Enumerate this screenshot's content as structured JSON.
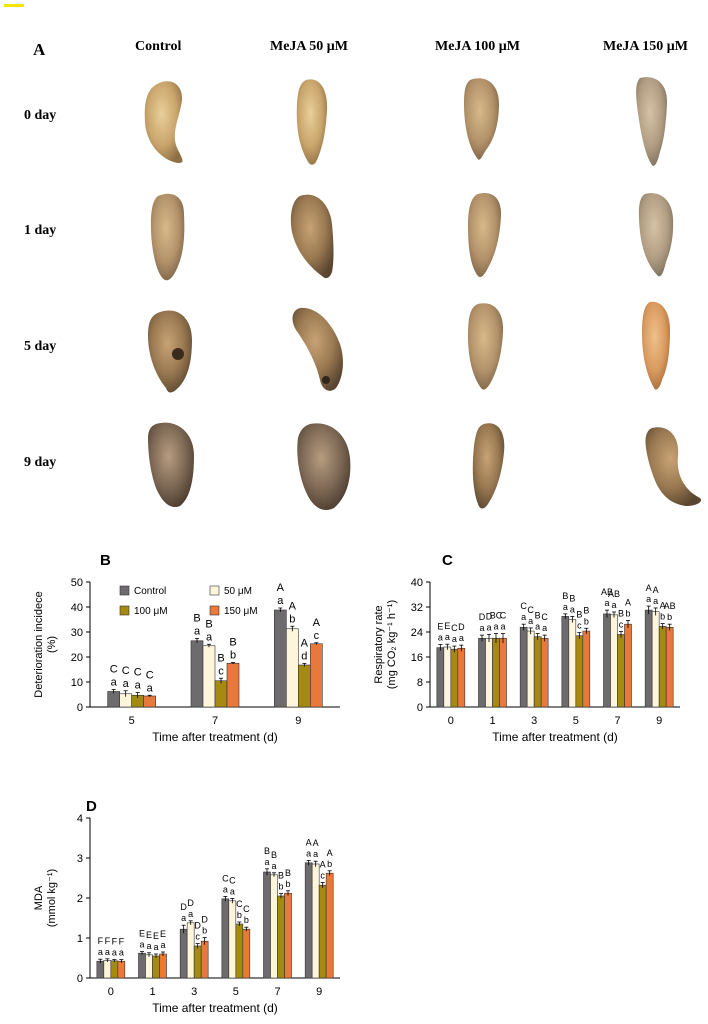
{
  "panel_a": {
    "label": "A",
    "columns": [
      "Control",
      "MeJA 50 μM",
      "MeJA 100 μM",
      "MeJA 150 μM"
    ],
    "rows": [
      "0 day",
      "1 day",
      "5 day",
      "9 day"
    ]
  },
  "colors": {
    "control": "#6e6b6e",
    "m50": "#fdf6dc",
    "m100": "#a58a12",
    "m150": "#e8793a"
  },
  "chart_data": [
    {
      "panel": "B",
      "type": "bar",
      "xlabel": "Time after treatment (d)",
      "ylabel_lines": [
        "Deterioration incidece",
        "(%)"
      ],
      "ylim": [
        0,
        50
      ],
      "yticks": [
        "0",
        "10",
        "20",
        "30",
        "40",
        "50"
      ],
      "categories": [
        "5",
        "7",
        "9"
      ],
      "legend": [
        "Control",
        "50 μM",
        "100 μM",
        "150 μM"
      ],
      "series": [
        {
          "name": "Control",
          "values": [
            6.2,
            26.5,
            38.8
          ],
          "err": [
            0.8,
            0.9,
            0.8
          ]
        },
        {
          "name": "50 μM",
          "values": [
            5.3,
            24.5,
            31.3
          ],
          "err": [
            1.2,
            0.6,
            1.0
          ]
        },
        {
          "name": "100 μM",
          "values": [
            4.7,
            10.5,
            16.8
          ],
          "err": [
            1.1,
            1.0,
            0.6
          ]
        },
        {
          "name": "150 μM",
          "values": [
            4.4,
            17.5,
            25.3
          ],
          "err": [
            0.3,
            0.3,
            0.4
          ]
        }
      ],
      "letters": [
        [
          [
            "C",
            "a"
          ],
          [
            "B",
            "a"
          ],
          [
            "A",
            "a"
          ]
        ],
        [
          [
            "C",
            "a"
          ],
          [
            "B",
            "a"
          ],
          [
            "A",
            "b"
          ]
        ],
        [
          [
            "C",
            "a"
          ],
          [
            "B",
            "c"
          ],
          [
            "A",
            "d"
          ]
        ],
        [
          [
            "C",
            "a"
          ],
          [
            "B",
            "b"
          ],
          [
            "A",
            "c"
          ]
        ]
      ]
    },
    {
      "panel": "C",
      "type": "bar",
      "xlabel": "Time after treatment (d)",
      "ylabel_lines": [
        "Respiratory rate",
        "(mg CO₂ kg⁻¹ h⁻¹)"
      ],
      "ylim": [
        0,
        40
      ],
      "yticks": [
        "0",
        "8",
        "16",
        "24",
        "32",
        "40"
      ],
      "categories": [
        "0",
        "1",
        "3",
        "5",
        "7",
        "9"
      ],
      "series": [
        {
          "name": "Control",
          "values": [
            19.0,
            22.0,
            25.5,
            29.0,
            29.8,
            31.0
          ],
          "err": [
            1.0,
            1.0,
            1.0,
            0.8,
            1.2,
            1.3
          ]
        },
        {
          "name": "50 μM",
          "values": [
            19.2,
            22.0,
            24.3,
            28.0,
            29.5,
            30.5
          ],
          "err": [
            0.9,
            1.2,
            1.0,
            1.0,
            0.9,
            1.2
          ]
        },
        {
          "name": "100 μM",
          "values": [
            18.5,
            22.0,
            22.5,
            22.8,
            23.2,
            25.8
          ],
          "err": [
            1.0,
            1.5,
            1.0,
            1.0,
            1.0,
            0.9
          ]
        },
        {
          "name": "150 μM",
          "values": [
            18.8,
            22.0,
            22.0,
            24.3,
            26.5,
            25.5
          ],
          "err": [
            1.0,
            1.5,
            1.0,
            0.9,
            1.2,
            1.0
          ]
        }
      ],
      "letters": [
        [
          [
            "E",
            "a"
          ],
          [
            "D",
            "a"
          ],
          [
            "C",
            "a"
          ],
          [
            "B",
            "a"
          ],
          [
            "AB",
            "a"
          ],
          [
            "A",
            "a"
          ]
        ],
        [
          [
            "E",
            "a"
          ],
          [
            "D",
            "a"
          ],
          [
            "C",
            "a"
          ],
          [
            "B",
            "a"
          ],
          [
            "AB",
            "a"
          ],
          [
            "A",
            "a"
          ]
        ],
        [
          [
            "C",
            "a"
          ],
          [
            "BC",
            "a"
          ],
          [
            "B",
            "a"
          ],
          [
            "B",
            "c"
          ],
          [
            "B",
            "c"
          ],
          [
            "A",
            "b"
          ]
        ],
        [
          [
            "D",
            "a"
          ],
          [
            "C",
            "a"
          ],
          [
            "C",
            "a"
          ],
          [
            "B",
            "b"
          ],
          [
            "A",
            "b"
          ],
          [
            "AB",
            "b"
          ]
        ]
      ]
    },
    {
      "panel": "D",
      "type": "bar",
      "xlabel": "Time after treatment (d)",
      "ylabel_lines": [
        "MDA",
        "(mmol kg⁻¹)"
      ],
      "ylim": [
        0,
        4
      ],
      "yticks": [
        "0",
        "1",
        "2",
        "3",
        "4"
      ],
      "categories": [
        "0",
        "1",
        "3",
        "5",
        "7",
        "9"
      ],
      "series": [
        {
          "name": "Control",
          "values": [
            0.42,
            0.62,
            1.22,
            1.98,
            2.65,
            2.88
          ],
          "err": [
            0.05,
            0.04,
            0.1,
            0.06,
            0.08,
            0.06
          ]
        },
        {
          "name": "50 μM",
          "values": [
            0.44,
            0.58,
            1.38,
            1.93,
            2.58,
            2.85
          ],
          "err": [
            0.04,
            0.05,
            0.05,
            0.06,
            0.05,
            0.07
          ]
        },
        {
          "name": "100 μM",
          "values": [
            0.43,
            0.55,
            0.8,
            1.35,
            2.05,
            2.32
          ],
          "err": [
            0.03,
            0.05,
            0.06,
            0.05,
            0.06,
            0.07
          ]
        },
        {
          "name": "150 μM",
          "values": [
            0.42,
            0.6,
            0.92,
            1.22,
            2.12,
            2.62
          ],
          "err": [
            0.04,
            0.05,
            0.09,
            0.05,
            0.06,
            0.06
          ]
        }
      ],
      "letters": [
        [
          [
            "F",
            "a"
          ],
          [
            "E",
            "a"
          ],
          [
            "D",
            "a"
          ],
          [
            "C",
            "a"
          ],
          [
            "B",
            "a"
          ],
          [
            "A",
            "a"
          ]
        ],
        [
          [
            "F",
            "a"
          ],
          [
            "E",
            "a"
          ],
          [
            "D",
            "a"
          ],
          [
            "C",
            "a"
          ],
          [
            "B",
            "a"
          ],
          [
            "A",
            "a"
          ]
        ],
        [
          [
            "F",
            "a"
          ],
          [
            "E",
            "a"
          ],
          [
            "D",
            "c"
          ],
          [
            "C",
            "b"
          ],
          [
            "B",
            "b"
          ],
          [
            "A",
            "c"
          ]
        ],
        [
          [
            "F",
            "a"
          ],
          [
            "E",
            "a"
          ],
          [
            "D",
            "b"
          ],
          [
            "C",
            "b"
          ],
          [
            "B",
            "b"
          ],
          [
            "A",
            "b"
          ]
        ]
      ]
    }
  ]
}
